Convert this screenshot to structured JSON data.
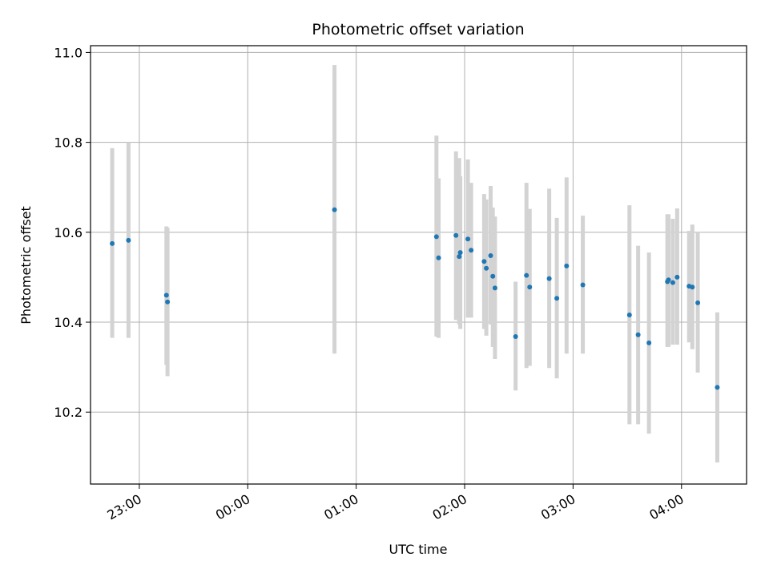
{
  "chart_data": {
    "type": "scatter",
    "title": "Photometric offset variation",
    "xlabel": "UTC time",
    "ylabel": "Photometric offset",
    "grid": true,
    "legend": "none",
    "x_ticks": [
      "23:00",
      "00:00",
      "01:00",
      "02:00",
      "03:00",
      "04:00"
    ],
    "y_ticks": [
      "10.2",
      "10.4",
      "10.6",
      "10.8",
      "11.0"
    ],
    "xlim_hours": [
      22.55,
      28.6
    ],
    "ylim": [
      10.04,
      11.015
    ],
    "colors": {
      "point": "#1f77b4",
      "errorbar": "#d3d3d3",
      "grid": "#b0b0b0"
    },
    "series": [
      {
        "points": [
          {
            "t": 22.75,
            "y": 10.575,
            "lo": 10.365,
            "hi": 10.787
          },
          {
            "t": 22.9,
            "y": 10.582,
            "lo": 10.365,
            "hi": 10.8
          },
          {
            "t": 23.25,
            "y": 10.46,
            "lo": 10.305,
            "hi": 10.613
          },
          {
            "t": 23.26,
            "y": 10.445,
            "lo": 10.28,
            "hi": 10.61
          },
          {
            "t": 24.8,
            "y": 10.65,
            "lo": 10.33,
            "hi": 10.972
          },
          {
            "t": 25.74,
            "y": 10.59,
            "lo": 10.368,
            "hi": 10.815
          },
          {
            "t": 25.76,
            "y": 10.543,
            "lo": 10.365,
            "hi": 10.72
          },
          {
            "t": 25.92,
            "y": 10.593,
            "lo": 10.405,
            "hi": 10.78
          },
          {
            "t": 25.95,
            "y": 10.546,
            "lo": 10.395,
            "hi": 10.765
          },
          {
            "t": 25.96,
            "y": 10.555,
            "lo": 10.385,
            "hi": 10.725
          },
          {
            "t": 26.03,
            "y": 10.585,
            "lo": 10.41,
            "hi": 10.762
          },
          {
            "t": 26.06,
            "y": 10.56,
            "lo": 10.41,
            "hi": 10.71
          },
          {
            "t": 26.18,
            "y": 10.535,
            "lo": 10.385,
            "hi": 10.685
          },
          {
            "t": 26.2,
            "y": 10.52,
            "lo": 10.37,
            "hi": 10.673
          },
          {
            "t": 26.24,
            "y": 10.548,
            "lo": 10.395,
            "hi": 10.703
          },
          {
            "t": 26.26,
            "y": 10.502,
            "lo": 10.345,
            "hi": 10.655
          },
          {
            "t": 26.28,
            "y": 10.476,
            "lo": 10.318,
            "hi": 10.635
          },
          {
            "t": 26.47,
            "y": 10.368,
            "lo": 10.248,
            "hi": 10.49
          },
          {
            "t": 26.57,
            "y": 10.504,
            "lo": 10.298,
            "hi": 10.71
          },
          {
            "t": 26.6,
            "y": 10.478,
            "lo": 10.303,
            "hi": 10.652
          },
          {
            "t": 26.78,
            "y": 10.497,
            "lo": 10.298,
            "hi": 10.697
          },
          {
            "t": 26.85,
            "y": 10.453,
            "lo": 10.275,
            "hi": 10.632
          },
          {
            "t": 26.94,
            "y": 10.525,
            "lo": 10.33,
            "hi": 10.722
          },
          {
            "t": 27.09,
            "y": 10.483,
            "lo": 10.33,
            "hi": 10.637
          },
          {
            "t": 27.52,
            "y": 10.416,
            "lo": 10.173,
            "hi": 10.66
          },
          {
            "t": 27.6,
            "y": 10.372,
            "lo": 10.173,
            "hi": 10.57
          },
          {
            "t": 27.7,
            "y": 10.354,
            "lo": 10.152,
            "hi": 10.555
          },
          {
            "t": 27.87,
            "y": 10.49,
            "lo": 10.345,
            "hi": 10.64
          },
          {
            "t": 27.88,
            "y": 10.494,
            "lo": 10.345,
            "hi": 10.64
          },
          {
            "t": 27.92,
            "y": 10.488,
            "lo": 10.35,
            "hi": 10.63
          },
          {
            "t": 27.96,
            "y": 10.5,
            "lo": 10.35,
            "hi": 10.653
          },
          {
            "t": 28.07,
            "y": 10.48,
            "lo": 10.355,
            "hi": 10.603
          },
          {
            "t": 28.1,
            "y": 10.478,
            "lo": 10.34,
            "hi": 10.617
          },
          {
            "t": 28.15,
            "y": 10.443,
            "lo": 10.288,
            "hi": 10.6
          },
          {
            "t": 28.33,
            "y": 10.255,
            "lo": 10.088,
            "hi": 10.422
          }
        ]
      }
    ]
  }
}
